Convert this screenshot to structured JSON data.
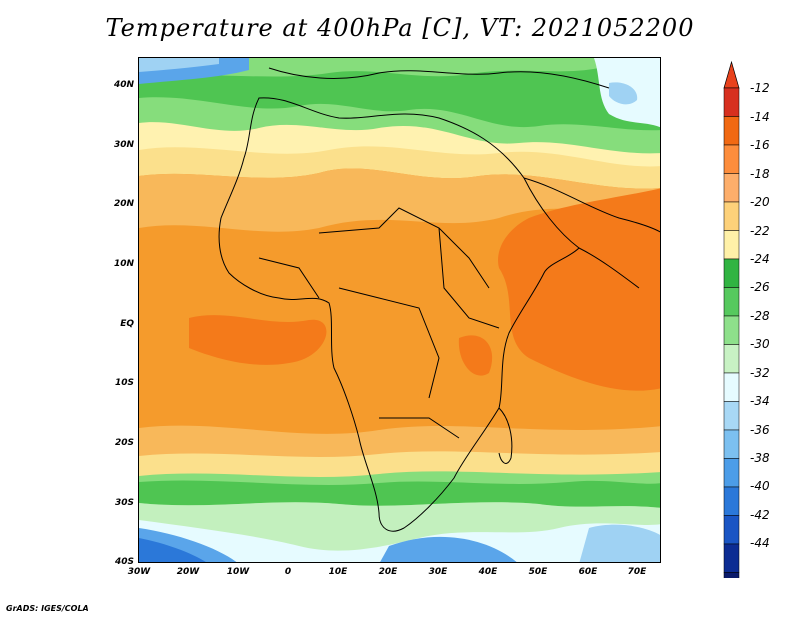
{
  "title": "Temperature at 400hPa [C], VT: 2021052200",
  "credit": "GrADS: IGES/COLA",
  "map": {
    "lat_labels": [
      "40N",
      "30N",
      "20N",
      "10N",
      "EQ",
      "10S",
      "20S",
      "30S",
      "40S"
    ],
    "lon_labels": [
      "30W",
      "20W",
      "10W",
      "0",
      "10E",
      "20E",
      "30E",
      "40E",
      "50E",
      "60E",
      "70E"
    ]
  },
  "colorbar": {
    "labels": [
      "-12",
      "-14",
      "-16",
      "-18",
      "-20",
      "-22",
      "-24",
      "-26",
      "-28",
      "-30",
      "-32",
      "-34",
      "-36",
      "-38",
      "-40",
      "-42",
      "-44"
    ],
    "colors": [
      "#d7301f",
      "#f16913",
      "#fd8d3c",
      "#fdae6b",
      "#fdd17a",
      "#fff1a8",
      "#31b442",
      "#56c95e",
      "#8ee08b",
      "#c8f2c4",
      "#e6fbff",
      "#a8d8f5",
      "#7cc0f0",
      "#4c9de8",
      "#2b78d9",
      "#1a55c4",
      "#0c2c93",
      "#0a1a6a"
    ],
    "top_arrow_color": "#e8421c",
    "bottom_arrow_color": "#d5dcfa"
  },
  "field_colors": {
    "warm": "#f47a1a",
    "orange": "#f59b2c",
    "light_orange": "#f8b85a",
    "yellow": "#fbe08c",
    "pale_yellow": "#fff2b0",
    "green": "#4fc552",
    "light_green": "#86dd7c",
    "pale_green": "#c3f0be",
    "cyan": "#e6fbff",
    "light_blue": "#9fd2f3",
    "blue": "#5aa5ea",
    "land_line": "#000000"
  }
}
